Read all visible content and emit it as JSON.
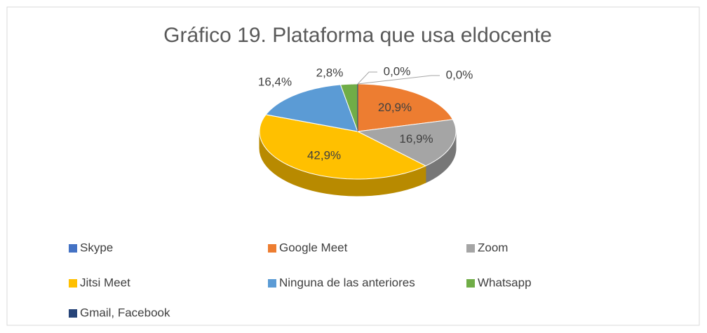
{
  "chart_data": {
    "type": "pie",
    "title": "Gráfico 19. Plataforma que usa eldocente",
    "categories": [
      "Skype",
      "Google Meet",
      "Zoom",
      "Jitsi Meet",
      "Ninguna de las anteriores",
      "Whatsapp",
      "Gmail, Facebook"
    ],
    "values": [
      0.0,
      20.9,
      16.9,
      42.9,
      16.4,
      2.8,
      0.0
    ],
    "value_labels": [
      "0,0%",
      "20,9%",
      "16,9%",
      "42,9%",
      "16,4%",
      "2,8%",
      "0,0%"
    ],
    "colors": [
      "#4472c4",
      "#ed7d31",
      "#a5a5a5",
      "#ffc000",
      "#5b9bd5",
      "#70ad47",
      "#264478"
    ],
    "legend": "bottom"
  }
}
